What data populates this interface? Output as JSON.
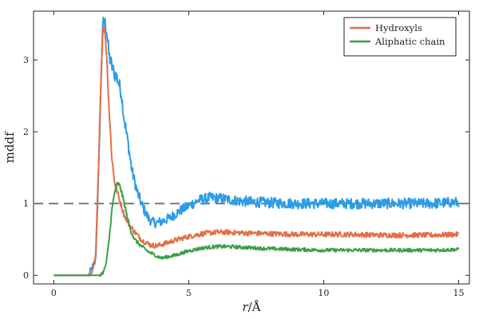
{
  "chart_data": {
    "type": "line",
    "xlabel": "r/Å",
    "xlabel_parts": {
      "var": "r",
      "sep": "/",
      "unit": "Å"
    },
    "ylabel": "mddf",
    "xlim": [
      -0.75,
      15.4
    ],
    "ylim": [
      -0.12,
      3.68
    ],
    "xticks": [
      0,
      5,
      10,
      15
    ],
    "yticks": [
      0,
      1,
      2,
      3
    ],
    "reference_line": {
      "y": 1,
      "style": "dashed",
      "color": "#777777"
    },
    "legend_position": "top-right",
    "grid": false,
    "series": [
      {
        "name": "",
        "color": "#2b9ce6",
        "noise": 0.055,
        "x": [
          0,
          1.3,
          1.55,
          1.65,
          1.75,
          1.8,
          1.85,
          1.95,
          2.05,
          2.2,
          2.35,
          2.5,
          2.6,
          2.75,
          2.9,
          3.1,
          3.3,
          3.5,
          3.65,
          3.8,
          4.0,
          4.3,
          4.6,
          5.0,
          5.4,
          5.8,
          6.2,
          6.6,
          7.0,
          7.5,
          8.0,
          9.0,
          10.0,
          11.0,
          12.0,
          13.0,
          14.0,
          15.0
        ],
        "y": [
          0,
          0,
          0.2,
          1.3,
          2.7,
          3.35,
          3.55,
          3.45,
          3.05,
          2.85,
          2.75,
          2.55,
          2.2,
          1.85,
          1.45,
          1.15,
          0.95,
          0.8,
          0.74,
          0.73,
          0.75,
          0.8,
          0.88,
          0.97,
          1.05,
          1.08,
          1.07,
          1.05,
          1.03,
          1.02,
          1.01,
          1.0,
          1.0,
          1.0,
          1.0,
          1.0,
          1.0,
          1.02
        ]
      },
      {
        "name": "Hydroxyls",
        "color": "#e26f46",
        "noise": 0.03,
        "x": [
          0,
          1.4,
          1.55,
          1.65,
          1.75,
          1.82,
          1.88,
          1.95,
          2.05,
          2.15,
          2.25,
          2.4,
          2.6,
          2.8,
          3.0,
          3.3,
          3.6,
          3.8,
          4.1,
          4.5,
          5.0,
          5.5,
          6.0,
          6.5,
          7.0,
          8.0,
          9.0,
          10.0,
          11.0,
          12.0,
          13.0,
          14.0,
          15.0
        ],
        "y": [
          0,
          0,
          0.25,
          1.4,
          2.8,
          3.4,
          3.45,
          3.15,
          2.3,
          1.65,
          1.3,
          1.1,
          0.85,
          0.7,
          0.6,
          0.48,
          0.42,
          0.41,
          0.44,
          0.49,
          0.54,
          0.58,
          0.6,
          0.6,
          0.59,
          0.58,
          0.57,
          0.57,
          0.57,
          0.56,
          0.56,
          0.56,
          0.57
        ]
      },
      {
        "name": "Aliphatic chain",
        "color": "#3a9e4a",
        "noise": 0.022,
        "x": [
          0,
          1.7,
          1.85,
          1.95,
          2.05,
          2.15,
          2.25,
          2.35,
          2.45,
          2.55,
          2.7,
          2.85,
          3.0,
          3.2,
          3.5,
          3.8,
          4.0,
          4.5,
          5.0,
          5.5,
          6.0,
          6.5,
          7.0,
          8.0,
          9.0,
          10.0,
          11.0,
          12.0,
          13.0,
          14.0,
          15.0
        ],
        "y": [
          0,
          0,
          0.05,
          0.18,
          0.5,
          0.9,
          1.15,
          1.28,
          1.25,
          1.1,
          0.85,
          0.62,
          0.5,
          0.42,
          0.33,
          0.27,
          0.24,
          0.28,
          0.34,
          0.38,
          0.4,
          0.4,
          0.39,
          0.37,
          0.36,
          0.35,
          0.35,
          0.35,
          0.35,
          0.35,
          0.36
        ]
      }
    ]
  }
}
